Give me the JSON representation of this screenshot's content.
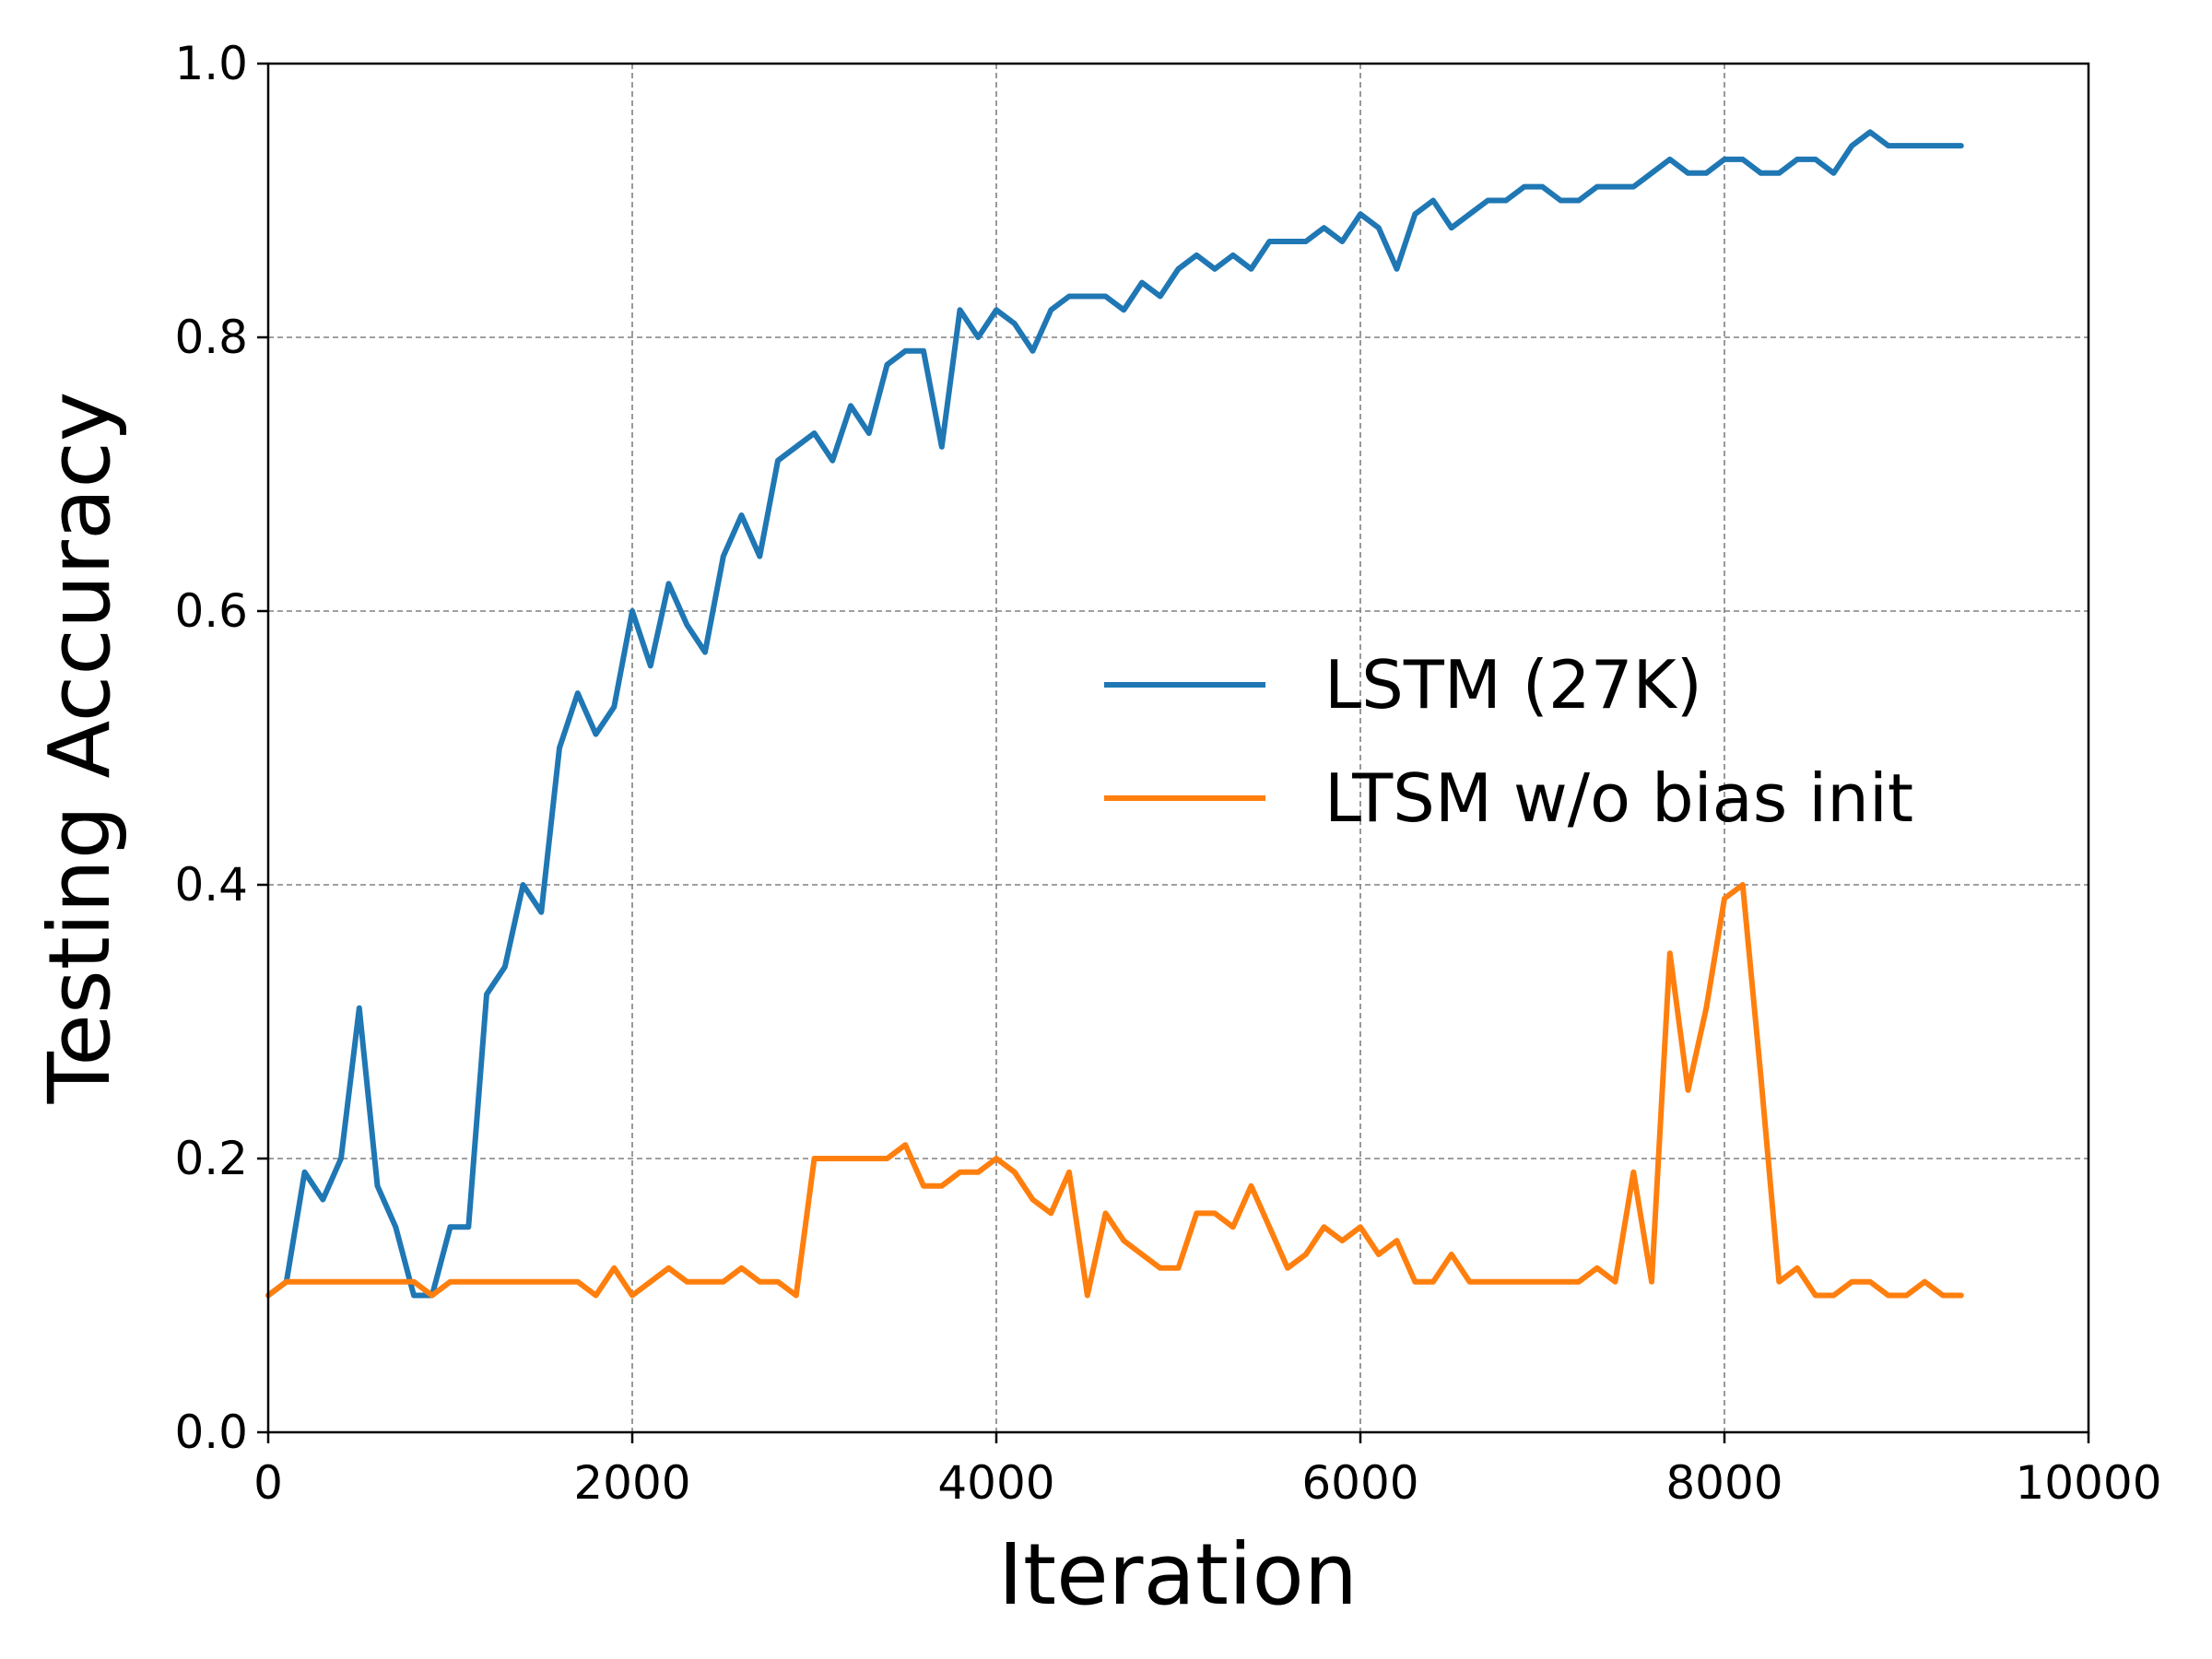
{
  "chart_data": {
    "type": "line",
    "title": "",
    "xlabel": "Iteration",
    "ylabel": "Testing Accuracy",
    "xlim": [
      0,
      10000
    ],
    "ylim": [
      0.0,
      1.0
    ],
    "xticks": [
      0,
      2000,
      4000,
      6000,
      8000,
      10000
    ],
    "xtick_labels": [
      "0",
      "2000",
      "4000",
      "6000",
      "8000",
      "10000"
    ],
    "yticks": [
      0.0,
      0.2,
      0.4,
      0.6,
      0.8,
      1.0
    ],
    "ytick_labels": [
      "0.0",
      "0.2",
      "0.4",
      "0.6",
      "0.8",
      "1.0"
    ],
    "grid": true,
    "legend_position": "center-right",
    "x": [
      0,
      100,
      200,
      300,
      400,
      500,
      600,
      700,
      800,
      900,
      1000,
      1100,
      1200,
      1300,
      1400,
      1500,
      1600,
      1700,
      1800,
      1900,
      2000,
      2100,
      2200,
      2300,
      2400,
      2500,
      2600,
      2700,
      2800,
      2900,
      3000,
      3100,
      3200,
      3300,
      3400,
      3500,
      3600,
      3700,
      3800,
      3900,
      4000,
      4100,
      4200,
      4300,
      4400,
      4500,
      4600,
      4700,
      4800,
      4900,
      5000,
      5100,
      5200,
      5300,
      5400,
      5500,
      5600,
      5700,
      5800,
      5900,
      6000,
      6100,
      6200,
      6300,
      6400,
      6500,
      6600,
      6700,
      6800,
      6900,
      7000,
      7100,
      7200,
      7300,
      7400,
      7500,
      7600,
      7700,
      7800,
      7900,
      8000,
      8100,
      8200,
      8300,
      8400,
      8500,
      8600,
      8700,
      8800,
      8900,
      9000,
      9100,
      9200,
      9300
    ],
    "series": [
      {
        "name": "LSTM (27K)",
        "color": "#1f77b4",
        "values": [
          0.1,
          0.11,
          0.19,
          0.17,
          0.2,
          0.31,
          0.18,
          0.15,
          0.1,
          0.1,
          0.15,
          0.15,
          0.32,
          0.34,
          0.4,
          0.38,
          0.5,
          0.54,
          0.51,
          0.53,
          0.6,
          0.56,
          0.62,
          0.59,
          0.57,
          0.64,
          0.67,
          0.64,
          0.71,
          0.72,
          0.73,
          0.71,
          0.75,
          0.73,
          0.78,
          0.79,
          0.79,
          0.72,
          0.82,
          0.8,
          0.82,
          0.81,
          0.79,
          0.82,
          0.83,
          0.83,
          0.83,
          0.82,
          0.84,
          0.83,
          0.85,
          0.86,
          0.85,
          0.86,
          0.85,
          0.87,
          0.87,
          0.87,
          0.88,
          0.87,
          0.89,
          0.88,
          0.85,
          0.89,
          0.9,
          0.88,
          0.89,
          0.9,
          0.9,
          0.91,
          0.91,
          0.9,
          0.9,
          0.91,
          0.91,
          0.91,
          0.92,
          0.93,
          0.92,
          0.92,
          0.93,
          0.93,
          0.92,
          0.92,
          0.93,
          0.93,
          0.92,
          0.94,
          0.95,
          0.94,
          0.94,
          0.94,
          0.94,
          0.94
        ]
      },
      {
        "name": "LTSM w/o bias init",
        "color": "#ff7f0e",
        "values": [
          0.1,
          0.11,
          0.11,
          0.11,
          0.11,
          0.11,
          0.11,
          0.11,
          0.11,
          0.1,
          0.11,
          0.11,
          0.11,
          0.11,
          0.11,
          0.11,
          0.11,
          0.11,
          0.1,
          0.12,
          0.1,
          0.11,
          0.12,
          0.11,
          0.11,
          0.11,
          0.12,
          0.11,
          0.11,
          0.1,
          0.2,
          0.2,
          0.2,
          0.2,
          0.2,
          0.21,
          0.18,
          0.18,
          0.19,
          0.19,
          0.2,
          0.19,
          0.17,
          0.16,
          0.19,
          0.1,
          0.16,
          0.14,
          0.13,
          0.12,
          0.12,
          0.16,
          0.16,
          0.15,
          0.18,
          0.15,
          0.12,
          0.13,
          0.15,
          0.14,
          0.15,
          0.13,
          0.14,
          0.11,
          0.11,
          0.13,
          0.11,
          0.11,
          0.11,
          0.11,
          0.11,
          0.11,
          0.11,
          0.12,
          0.11,
          0.19,
          0.11,
          0.35,
          0.25,
          0.31,
          0.39,
          0.4,
          0.26,
          0.11,
          0.12,
          0.1,
          0.1,
          0.11,
          0.11,
          0.1,
          0.1,
          0.11,
          0.1,
          0.1
        ]
      }
    ]
  }
}
